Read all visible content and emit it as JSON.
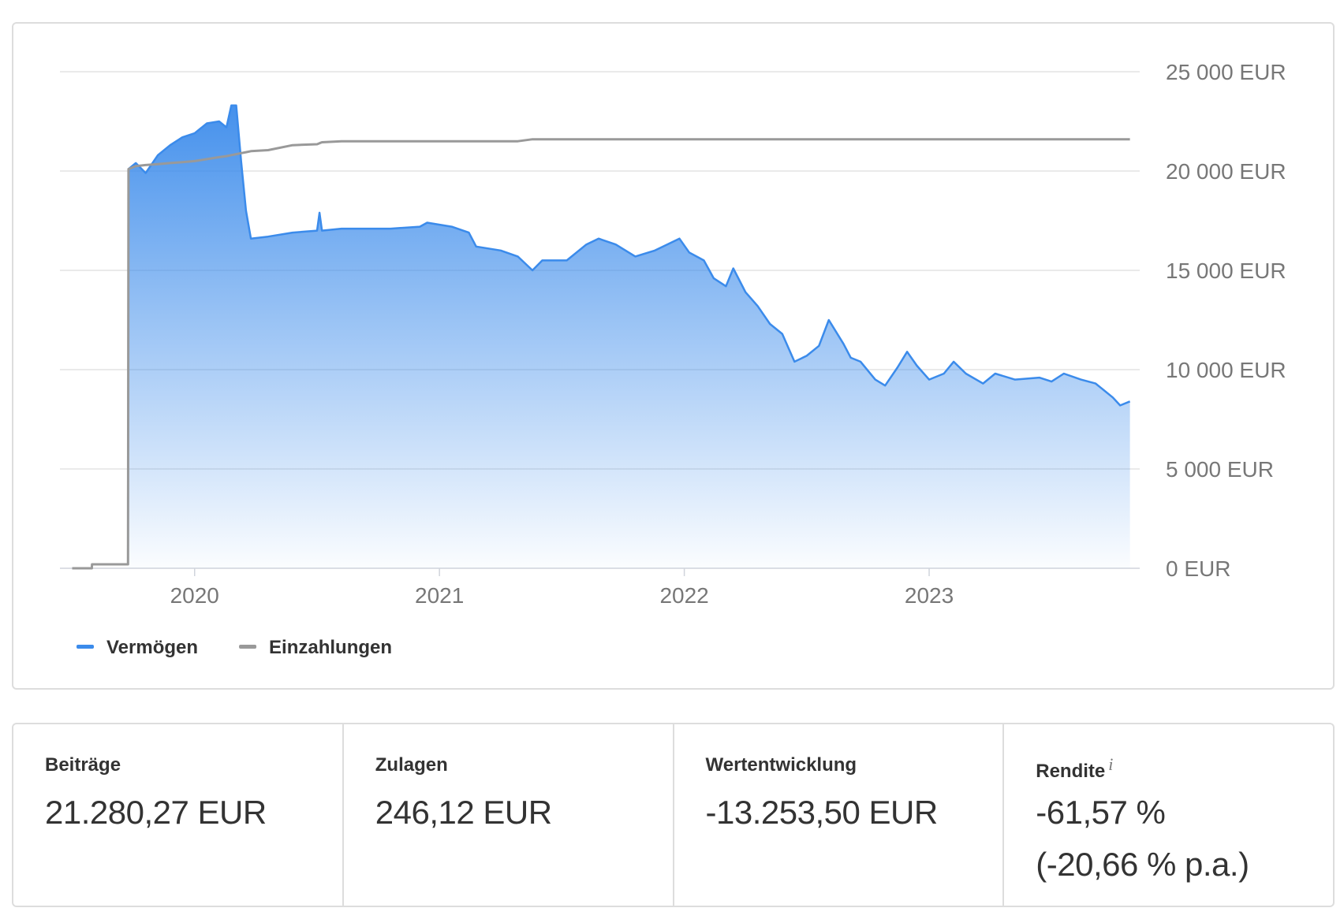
{
  "chart_data": {
    "type": "line",
    "x": [
      2019.5,
      2019.58,
      2019.581,
      2019.728,
      2019.73,
      2019.76,
      2019.8,
      2019.85,
      2019.9,
      2019.95,
      2020.0,
      2020.05,
      2020.1,
      2020.13,
      2020.15,
      2020.17,
      2020.19,
      2020.21,
      2020.23,
      2020.3,
      2020.4,
      2020.5,
      2020.51,
      2020.52,
      2020.6,
      2020.8,
      2020.92,
      2020.95,
      2021.05,
      2021.12,
      2021.15,
      2021.25,
      2021.32,
      2021.38,
      2021.42,
      2021.52,
      2021.6,
      2021.65,
      2021.72,
      2021.8,
      2021.88,
      2021.93,
      2021.98,
      2022.02,
      2022.08,
      2022.12,
      2022.17,
      2022.2,
      2022.25,
      2022.3,
      2022.35,
      2022.4,
      2022.45,
      2022.5,
      2022.55,
      2022.59,
      2022.65,
      2022.68,
      2022.72,
      2022.78,
      2022.82,
      2022.87,
      2022.91,
      2022.95,
      2023.0,
      2023.06,
      2023.1,
      2023.15,
      2023.22,
      2023.27,
      2023.35,
      2023.45,
      2023.5,
      2023.55,
      2023.62,
      2023.68,
      2023.75,
      2023.78,
      2023.82
    ],
    "series": [
      {
        "name": "Vermögen",
        "color": "#3b8beb",
        "fill": true,
        "values": [
          null,
          null,
          null,
          null,
          20100,
          20400,
          19900,
          20800,
          21300,
          21700,
          21900,
          22400,
          22500,
          22200,
          23300,
          23300,
          20500,
          18000,
          16600,
          16700,
          16900,
          17000,
          17900,
          17000,
          17100,
          17100,
          17200,
          17400,
          17200,
          16900,
          16200,
          16000,
          15700,
          15000,
          15500,
          15500,
          16300,
          16600,
          16300,
          15700,
          16000,
          16300,
          16600,
          15900,
          15500,
          14600,
          14200,
          15100,
          13900,
          13200,
          12300,
          11800,
          10400,
          10700,
          11200,
          12500,
          11300,
          10600,
          10400,
          9500,
          9200,
          10100,
          10900,
          10200,
          9500,
          9800,
          10400,
          9800,
          9300,
          9800,
          9500,
          9600,
          9400,
          9800,
          9500,
          9300,
          8600,
          8200,
          8400
        ]
      },
      {
        "name": "Einzahlungen",
        "color": "#999999",
        "fill": false,
        "values": [
          0,
          0,
          200,
          200,
          20100,
          20250,
          20300,
          20350,
          20400,
          20450,
          20500,
          20600,
          20700,
          20750,
          20800,
          20850,
          20900,
          20950,
          21000,
          21050,
          21300,
          21350,
          21400,
          21450,
          21500,
          21500,
          21500,
          21500,
          21500,
          21500,
          21500,
          21500,
          21500,
          21600,
          21600,
          21600,
          21600,
          21600,
          21600,
          21600,
          21600,
          21600,
          21600,
          21600,
          21600,
          21600,
          21600,
          21600,
          21600,
          21600,
          21600,
          21600,
          21600,
          21600,
          21600,
          21600,
          21600,
          21600,
          21600,
          21600,
          21600,
          21600,
          21600,
          21600,
          21600,
          21600,
          21600,
          21600,
          21600,
          21600,
          21600,
          21600,
          21600,
          21600,
          21600,
          21600,
          21600,
          21600,
          21600
        ]
      }
    ],
    "xlim": [
      2019.45,
      2023.86
    ],
    "xticks": [
      2020,
      2021,
      2022,
      2023
    ],
    "ylim": [
      0,
      25000
    ],
    "yticks": [
      {
        "value": 0,
        "label": "0 EUR"
      },
      {
        "value": 5000,
        "label": "5 000 EUR"
      },
      {
        "value": 10000,
        "label": "10 000 EUR"
      },
      {
        "value": 15000,
        "label": "15 000 EUR"
      },
      {
        "value": 20000,
        "label": "20 000 EUR"
      },
      {
        "value": 25000,
        "label": "25 000 EUR"
      }
    ],
    "grid": true,
    "legend": "bottom-left"
  },
  "stats": [
    {
      "label": "Beiträge",
      "value": "21.280,27 EUR"
    },
    {
      "label": "Zulagen",
      "value": "246,12 EUR"
    },
    {
      "label": "Wertentwicklung",
      "value": "-13.253,50 EUR"
    },
    {
      "label": "Rendite",
      "info": "i",
      "value": "-61,57 %",
      "value2": "(-20,66 % p.a.)"
    }
  ]
}
